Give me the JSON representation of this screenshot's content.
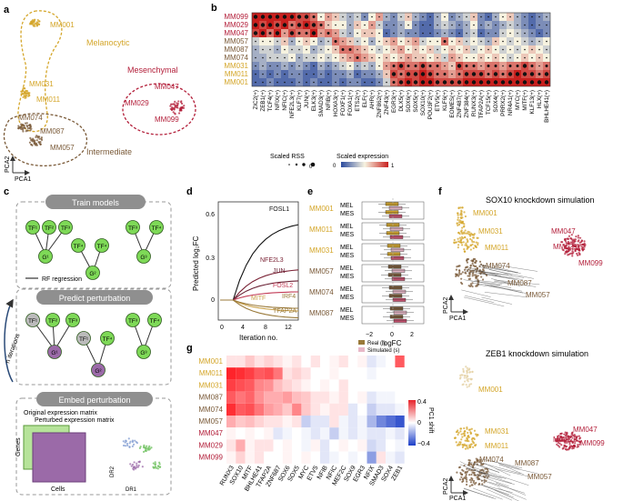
{
  "panels": {
    "a": "a",
    "b": "b",
    "c": "c",
    "d": "d",
    "e": "e",
    "f": "f",
    "g": "g"
  },
  "samples": [
    "MM099",
    "MM029",
    "MM047",
    "MM057",
    "MM087",
    "MM074",
    "MM031",
    "MM011",
    "MM001"
  ],
  "sample_colors": {
    "MM099": "#b31f3a",
    "MM029": "#b31f3a",
    "MM047": "#b31f3a",
    "MM057": "#7a5a38",
    "MM087": "#7a5a38",
    "MM074": "#7a5a38",
    "MM031": "#d4a62a",
    "MM011": "#d4a62a",
    "MM001": "#d4a62a"
  },
  "panel_a": {
    "groups": {
      "melanocytic": "Melanocytic",
      "mesenchymal": "Mesenchymal",
      "intermediate": "Intermediate"
    },
    "labels": {
      "MM001": "MM001",
      "MM031": "MM031",
      "MM011": "MM011",
      "MM047": "MM047",
      "MM029": "MM029",
      "MM099": "MM099",
      "MM074": "MM074",
      "MM087": "MM087",
      "MM057": "MM057"
    },
    "axis_x": "PCA1",
    "axis_y": "PCA2"
  },
  "panel_b": {
    "tfs": [
      "ZIC2(+)",
      "ZEB1(+)",
      "TCF4(+)",
      "NFIX(+)",
      "NFIC(+)",
      "NFE2L3(+)",
      "KLF7(+)",
      "JUN(+)",
      "ELK3(+)",
      "SMAD3(+)",
      "NFIB(+)",
      "HOXA3(+)",
      "FOXF1(+)",
      "FOXA1(+)",
      "ETS2(+)",
      "ELF(+)",
      "AHR(+)",
      "ZNF862(+)",
      "ZNF43(+)",
      "EGR3(+)",
      "DLX5(+)",
      "SOX6(+)",
      "SOX5(+)",
      "SOX10(+)",
      "POU3F2(+)",
      "ETV5(+)",
      "KLF6(+)",
      "EOMES(+)",
      "ZNF487(+)",
      "ZNF384(+)",
      "RUNX3(+)",
      "TFAP2A(+)",
      "TCF15(+)",
      "SOX4(+)",
      "PRRX2(+)",
      "NR4A1(+)",
      "MYC(+)",
      "MITF(+)",
      "KLF13(+)",
      "HLX(+)",
      "BHLHE41(+)"
    ],
    "legend_rss": "Scaled RSS",
    "legend_expr": "Scaled expression",
    "rss_ticks": [
      "0",
      "0.5",
      "1"
    ],
    "expr_ticks": [
      "0",
      "1"
    ]
  },
  "panel_c": {
    "train": "Train models",
    "predict": "Predict perturbation",
    "embed": "Embed perturbation",
    "rf": "RF regression",
    "iterations": "n iterations",
    "orig": "Original expression matrix",
    "pert": "Perturbed expression matrix",
    "genes": "Genes",
    "cells": "Cells",
    "dr1": "DR1",
    "dr2": "DR2",
    "tf1": "TF¹",
    "tf2": "TF²",
    "tf3": "TF³",
    "tf4": "TF⁴",
    "g1": "G¹",
    "g2": "G²",
    "g3": "G³"
  },
  "panel_d": {
    "xlabel": "Iteration no.",
    "ylabel": "Predicted log₂FC",
    "xticks": [
      "0",
      "4",
      "8",
      "12"
    ],
    "yticks": [
      "0.6",
      "0.3",
      "0"
    ],
    "genes": [
      "FOSL1",
      "NFE2L3",
      "JUN",
      "FOSL2",
      "MITF",
      "IRF4",
      "TFAP2A"
    ]
  },
  "panel_e": {
    "samples": [
      "MM001",
      "MM011",
      "MM031",
      "MM057",
      "MM074",
      "MM087"
    ],
    "mel": "MEL",
    "mes": "MES",
    "xlabel": "logFC",
    "xticks": [
      "−2",
      "0",
      "2"
    ],
    "legend_real": "Real (r)",
    "legend_sim": "Simulated (s)"
  },
  "panel_f": {
    "sox10_title": "SOX10 knockdown simulation",
    "zeb1_title": "ZEB1 knockdown simulation",
    "labels": {
      "MM001": "MM001",
      "MM031": "MM031",
      "MM011": "MM011",
      "MM074": "MM074",
      "MM087": "MM087",
      "MM057": "MM057",
      "MM047": "MM047",
      "MM029": "MM029",
      "MM099": "MM099"
    },
    "axis_x": "PCA1",
    "axis_y": "PCA2"
  },
  "panel_g": {
    "rows": [
      "MM001",
      "MM011",
      "MM031",
      "MM087",
      "MM074",
      "MM057",
      "MM047",
      "MM029",
      "MM099"
    ],
    "cols": [
      "RUNX3",
      "SOX10",
      "MITF",
      "BHLHE41",
      "TFAP2A",
      "ZNF687",
      "SOX6",
      "SOX5",
      "MYC",
      "ETV5",
      "NFIB",
      "NFIC",
      "MEF2C",
      "SOX9",
      "EGR3",
      "NFIX",
      "SMAD3",
      "SOX4",
      "ZEB1"
    ],
    "legend_title": "PC1 shift",
    "legend_ticks": [
      "0.4",
      "0",
      "−0.4"
    ]
  },
  "colors": {
    "mel": "#d4a62a",
    "int": "#7a5a38",
    "mes": "#b31f3a",
    "box_green": "#7ed957",
    "box_purple": "#9b6aa8",
    "heat_red": "#e8232a",
    "heat_blue": "#1b3ec8"
  }
}
